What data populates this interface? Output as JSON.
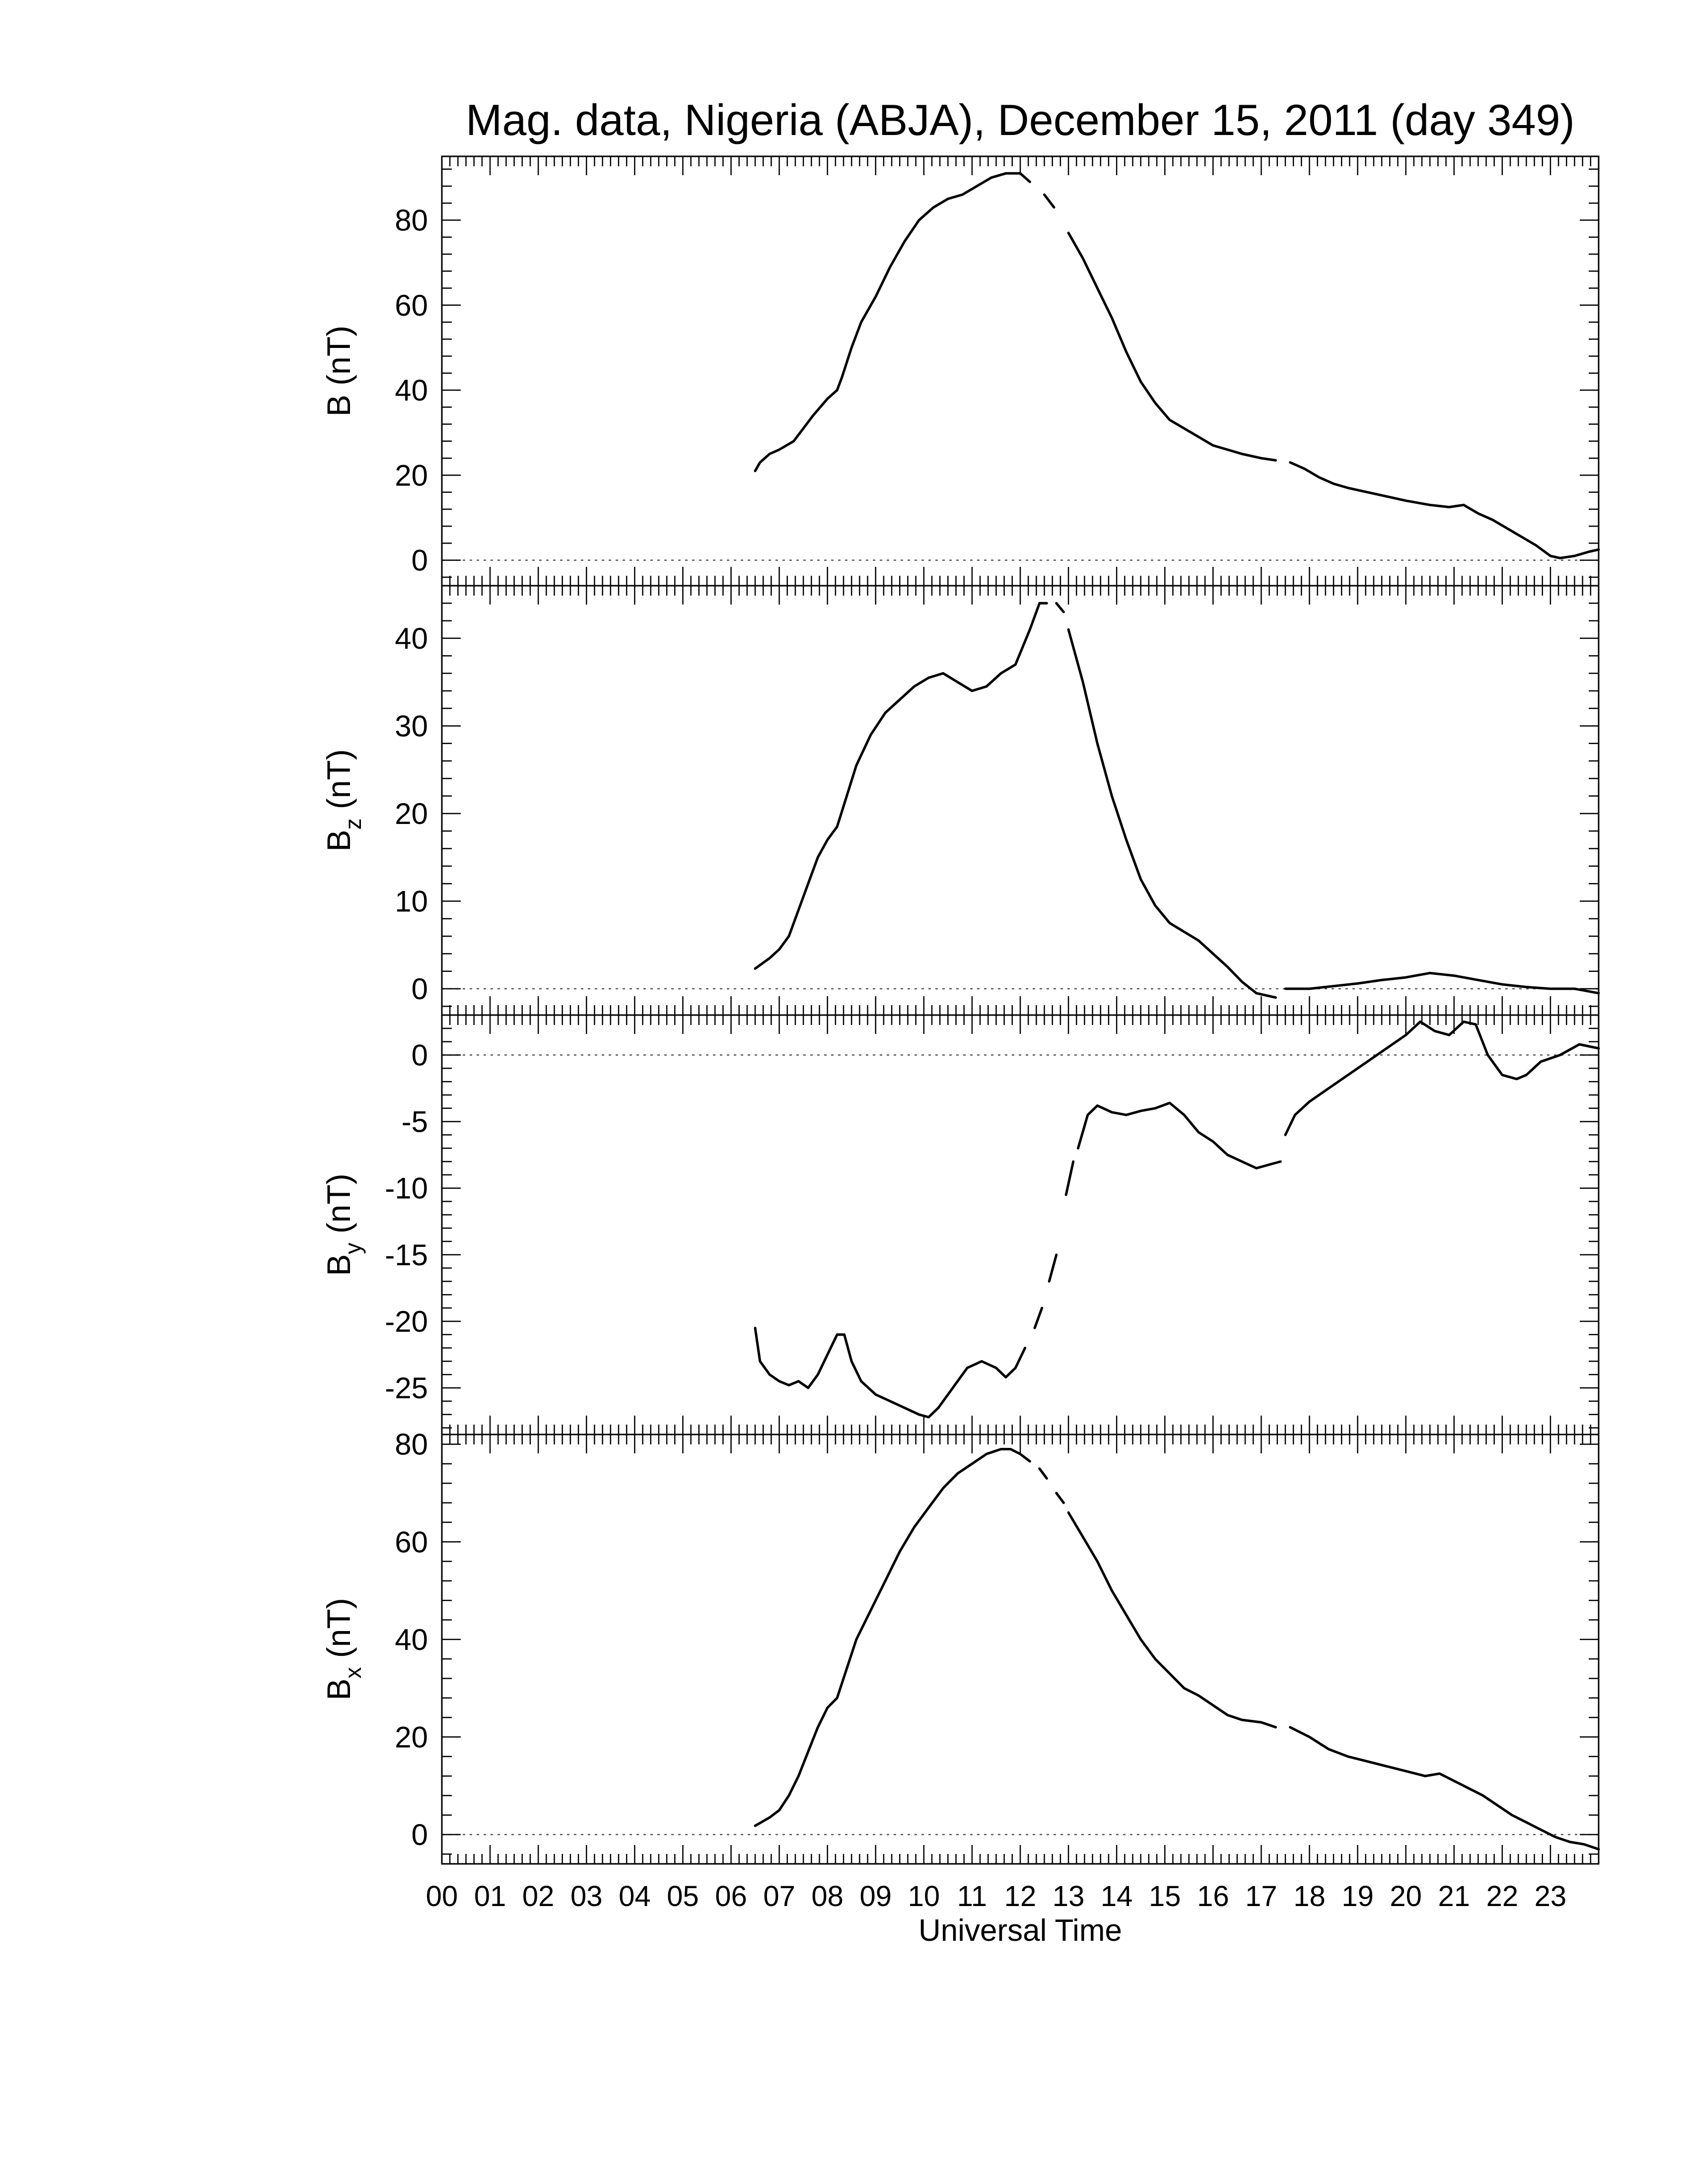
{
  "chart_data": {
    "type": "line",
    "title": "Mag. data, Nigeria (ABJA), December 15, 2011 (day 349)",
    "xlabel": "Universal Time",
    "x_unit": "UT hours",
    "xlim": [
      0,
      24
    ],
    "x_tick_labels": [
      "00",
      "01",
      "02",
      "03",
      "04",
      "05",
      "06",
      "07",
      "08",
      "09",
      "10",
      "11",
      "12",
      "13",
      "14",
      "15",
      "16",
      "17",
      "18",
      "19",
      "20",
      "21",
      "22",
      "23"
    ],
    "line_color": "#000000",
    "zero_line": "dotted",
    "panels": [
      {
        "ylabel_main": "B",
        "ylabel_sub": "",
        "ylabel_unit": "(nT)",
        "ylim": [
          -6,
          95
        ],
        "yticks": [
          0,
          20,
          40,
          60,
          80
        ],
        "segments": [
          [
            [
              6.5,
              21
            ],
            [
              6.6,
              23
            ],
            [
              6.8,
              25
            ],
            [
              7.0,
              26
            ],
            [
              7.3,
              28
            ],
            [
              7.5,
              31
            ],
            [
              7.7,
              34
            ],
            [
              8.0,
              38
            ],
            [
              8.2,
              40
            ],
            [
              8.3,
              43
            ],
            [
              8.5,
              50
            ],
            [
              8.7,
              56
            ],
            [
              9.0,
              62
            ],
            [
              9.3,
              69
            ],
            [
              9.6,
              75
            ],
            [
              9.9,
              80
            ],
            [
              10.2,
              83
            ],
            [
              10.5,
              85
            ],
            [
              10.8,
              86
            ],
            [
              11.1,
              88
            ],
            [
              11.4,
              90
            ],
            [
              11.7,
              91
            ],
            [
              12.0,
              91
            ],
            [
              12.2,
              89
            ]
          ],
          [
            [
              12.5,
              86
            ],
            [
              12.7,
              83
            ]
          ],
          [
            [
              13.0,
              77
            ],
            [
              13.3,
              71
            ],
            [
              13.6,
              64
            ],
            [
              13.9,
              57
            ],
            [
              14.2,
              49
            ],
            [
              14.5,
              42
            ],
            [
              14.8,
              37
            ],
            [
              15.1,
              33
            ],
            [
              15.4,
              31
            ],
            [
              15.7,
              29
            ],
            [
              16.0,
              27
            ],
            [
              16.3,
              26
            ],
            [
              16.6,
              25
            ],
            [
              17.0,
              24
            ],
            [
              17.3,
              23.5
            ]
          ],
          [
            [
              17.6,
              23
            ],
            [
              17.9,
              21.5
            ],
            [
              18.2,
              19.5
            ],
            [
              18.5,
              18
            ],
            [
              18.8,
              17
            ],
            [
              19.2,
              16
            ],
            [
              19.6,
              15
            ],
            [
              20.0,
              14
            ],
            [
              20.5,
              13
            ],
            [
              20.9,
              12.5
            ],
            [
              21.2,
              13
            ],
            [
              21.5,
              11
            ],
            [
              21.8,
              9.5
            ],
            [
              22.1,
              7.5
            ],
            [
              22.4,
              5.5
            ],
            [
              22.7,
              3.5
            ],
            [
              23.0,
              1
            ],
            [
              23.2,
              0.5
            ],
            [
              23.5,
              1
            ],
            [
              23.8,
              2
            ],
            [
              24.0,
              2.5
            ]
          ]
        ]
      },
      {
        "ylabel_main": "B",
        "ylabel_sub": "z",
        "ylabel_unit": "(nT)",
        "ylim": [
          -3,
          46
        ],
        "yticks": [
          0,
          10,
          20,
          30,
          40
        ],
        "segments": [
          [
            [
              6.5,
              2.3
            ],
            [
              6.8,
              3.5
            ],
            [
              7.0,
              4.5
            ],
            [
              7.2,
              6
            ],
            [
              7.4,
              9
            ],
            [
              7.6,
              12
            ],
            [
              7.8,
              15
            ],
            [
              8.0,
              17
            ],
            [
              8.2,
              18.5
            ],
            [
              8.4,
              22
            ],
            [
              8.6,
              25.5
            ],
            [
              8.9,
              29
            ],
            [
              9.2,
              31.5
            ],
            [
              9.5,
              33
            ],
            [
              9.8,
              34.5
            ],
            [
              10.1,
              35.5
            ],
            [
              10.4,
              36
            ],
            [
              10.7,
              35
            ],
            [
              11.0,
              34
            ],
            [
              11.3,
              34.5
            ],
            [
              11.6,
              36
            ],
            [
              11.9,
              37
            ],
            [
              12.2,
              41
            ],
            [
              12.4,
              44
            ],
            [
              12.55,
              44
            ]
          ],
          [
            [
              12.75,
              44
            ],
            [
              12.9,
              43
            ]
          ],
          [
            [
              13.0,
              41
            ],
            [
              13.3,
              35
            ],
            [
              13.6,
              28
            ],
            [
              13.9,
              22
            ],
            [
              14.2,
              17
            ],
            [
              14.5,
              12.5
            ],
            [
              14.8,
              9.5
            ],
            [
              15.1,
              7.5
            ],
            [
              15.4,
              6.5
            ],
            [
              15.7,
              5.5
            ],
            [
              16.0,
              4
            ],
            [
              16.3,
              2.5
            ],
            [
              16.6,
              0.8
            ],
            [
              16.9,
              -0.5
            ],
            [
              17.3,
              -1
            ]
          ],
          [
            [
              17.5,
              0
            ],
            [
              18.0,
              0
            ],
            [
              18.5,
              0.3
            ],
            [
              19.0,
              0.6
            ],
            [
              19.5,
              1
            ],
            [
              20.0,
              1.3
            ],
            [
              20.5,
              1.8
            ],
            [
              21.0,
              1.5
            ],
            [
              21.5,
              1
            ],
            [
              22.0,
              0.5
            ],
            [
              22.5,
              0.2
            ],
            [
              23.0,
              0
            ],
            [
              23.5,
              0
            ],
            [
              24.0,
              -0.5
            ]
          ]
        ]
      },
      {
        "ylabel_main": "B",
        "ylabel_sub": "y",
        "ylabel_unit": "(nT)",
        "ylim": [
          -28.5,
          3
        ],
        "yticks": [
          0,
          -5,
          -10,
          -15,
          -20,
          -25
        ],
        "segments": [
          [
            [
              6.5,
              -20.5
            ],
            [
              6.6,
              -23
            ],
            [
              6.8,
              -24
            ],
            [
              7.0,
              -24.5
            ],
            [
              7.2,
              -24.8
            ],
            [
              7.4,
              -24.5
            ],
            [
              7.6,
              -25
            ],
            [
              7.8,
              -24
            ],
            [
              8.0,
              -22.5
            ],
            [
              8.2,
              -21
            ],
            [
              8.35,
              -21
            ],
            [
              8.5,
              -23
            ],
            [
              8.7,
              -24.5
            ],
            [
              9.0,
              -25.5
            ],
            [
              9.3,
              -26
            ],
            [
              9.6,
              -26.5
            ],
            [
              9.9,
              -27
            ],
            [
              10.1,
              -27.2
            ],
            [
              10.3,
              -26.5
            ],
            [
              10.6,
              -25
            ],
            [
              10.9,
              -23.5
            ],
            [
              11.2,
              -23
            ],
            [
              11.5,
              -23.5
            ],
            [
              11.7,
              -24.2
            ],
            [
              11.9,
              -23.5
            ],
            [
              12.1,
              -22
            ]
          ],
          [
            [
              12.3,
              -20.5
            ],
            [
              12.45,
              -19
            ]
          ],
          [
            [
              12.6,
              -17
            ],
            [
              12.75,
              -15
            ]
          ],
          [
            [
              12.95,
              -10.5
            ],
            [
              13.1,
              -8
            ]
          ],
          [
            [
              13.2,
              -7
            ],
            [
              13.4,
              -4.5
            ],
            [
              13.6,
              -3.8
            ],
            [
              13.9,
              -4.3
            ],
            [
              14.2,
              -4.5
            ],
            [
              14.5,
              -4.2
            ],
            [
              14.8,
              -4
            ],
            [
              15.1,
              -3.6
            ],
            [
              15.4,
              -4.5
            ],
            [
              15.7,
              -5.8
            ],
            [
              16.0,
              -6.5
            ],
            [
              16.3,
              -7.5
            ],
            [
              16.6,
              -8
            ],
            [
              16.9,
              -8.5
            ],
            [
              17.2,
              -8.2
            ],
            [
              17.4,
              -8
            ]
          ],
          [
            [
              17.5,
              -6
            ],
            [
              17.7,
              -4.5
            ],
            [
              18.0,
              -3.5
            ],
            [
              18.4,
              -2.5
            ],
            [
              18.8,
              -1.5
            ],
            [
              19.2,
              -0.5
            ],
            [
              19.6,
              0.5
            ],
            [
              20.0,
              1.5
            ],
            [
              20.3,
              2.5
            ],
            [
              20.6,
              1.8
            ],
            [
              20.9,
              1.5
            ],
            [
              21.2,
              2.5
            ],
            [
              21.45,
              2.3
            ],
            [
              21.7,
              0
            ],
            [
              22.0,
              -1.5
            ],
            [
              22.3,
              -1.8
            ],
            [
              22.5,
              -1.5
            ],
            [
              22.8,
              -0.5
            ],
            [
              23.2,
              0
            ],
            [
              23.6,
              0.8
            ],
            [
              24.0,
              0.5
            ]
          ]
        ]
      },
      {
        "ylabel_main": "B",
        "ylabel_sub": "x",
        "ylabel_unit": "(nT)",
        "ylim": [
          -6,
          82
        ],
        "yticks": [
          0,
          20,
          40,
          60,
          80
        ],
        "segments": [
          [
            [
              6.5,
              1.8
            ],
            [
              6.8,
              3.5
            ],
            [
              7.0,
              5
            ],
            [
              7.2,
              8
            ],
            [
              7.4,
              12
            ],
            [
              7.6,
              17
            ],
            [
              7.8,
              22
            ],
            [
              8.0,
              26
            ],
            [
              8.2,
              28
            ],
            [
              8.4,
              34
            ],
            [
              8.6,
              40
            ],
            [
              8.9,
              46
            ],
            [
              9.2,
              52
            ],
            [
              9.5,
              58
            ],
            [
              9.8,
              63
            ],
            [
              10.1,
              67
            ],
            [
              10.4,
              71
            ],
            [
              10.7,
              74
            ],
            [
              11.0,
              76
            ],
            [
              11.3,
              78
            ],
            [
              11.6,
              79
            ],
            [
              11.8,
              79
            ],
            [
              12.0,
              78
            ],
            [
              12.2,
              76.5
            ]
          ],
          [
            [
              12.4,
              75
            ],
            [
              12.55,
              73
            ]
          ],
          [
            [
              12.75,
              70
            ],
            [
              12.9,
              68
            ]
          ],
          [
            [
              13.0,
              66
            ],
            [
              13.3,
              61
            ],
            [
              13.6,
              56
            ],
            [
              13.9,
              50
            ],
            [
              14.2,
              45
            ],
            [
              14.5,
              40
            ],
            [
              14.8,
              36
            ],
            [
              15.1,
              33
            ],
            [
              15.4,
              30
            ],
            [
              15.7,
              28.5
            ],
            [
              16.0,
              26.5
            ],
            [
              16.3,
              24.5
            ],
            [
              16.6,
              23.5
            ],
            [
              17.0,
              23
            ],
            [
              17.3,
              22
            ]
          ],
          [
            [
              17.6,
              22
            ],
            [
              18.0,
              20
            ],
            [
              18.4,
              17.5
            ],
            [
              18.8,
              16
            ],
            [
              19.2,
              15
            ],
            [
              19.6,
              14
            ],
            [
              20.0,
              13
            ],
            [
              20.4,
              12
            ],
            [
              20.7,
              12.5
            ],
            [
              21.0,
              11
            ],
            [
              21.3,
              9.5
            ],
            [
              21.6,
              8
            ],
            [
              21.9,
              6
            ],
            [
              22.2,
              4
            ],
            [
              22.5,
              2.5
            ],
            [
              22.8,
              1
            ],
            [
              23.1,
              -0.5
            ],
            [
              23.4,
              -1.5
            ],
            [
              23.7,
              -2
            ],
            [
              24.0,
              -3
            ]
          ]
        ]
      }
    ]
  }
}
